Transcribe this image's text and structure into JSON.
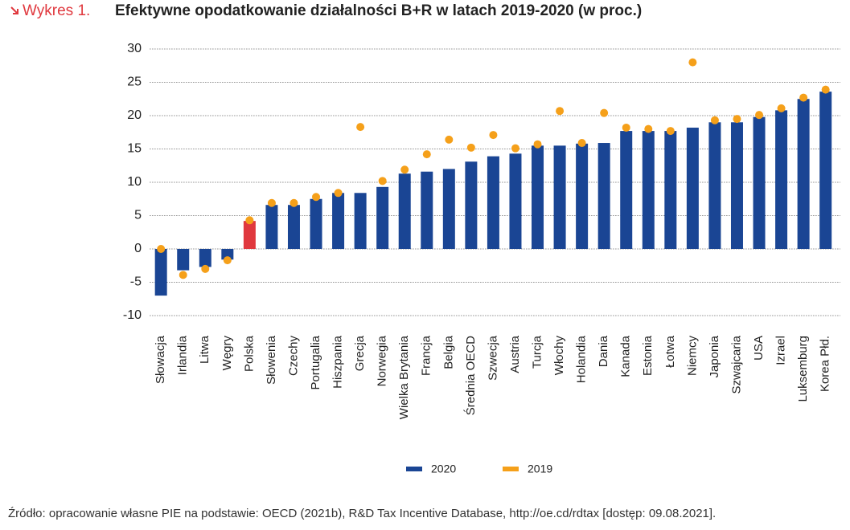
{
  "chart_data": {
    "type": "bar",
    "label": "Wykres 1.",
    "title": "Efektywne opodatkowanie działalności B+R w latach 2019-2020 (w proc.)",
    "source": "Źródło: opracowanie własne PIE na podstawie: OECD (2021b), R&D Tax Incentive Database, http://oe.cd/rdtax [dostęp: 09.08.2021].",
    "categories": [
      "Słowacja",
      "Irlandia",
      "Litwa",
      "Węgry",
      "Polska",
      "Słowenia",
      "Czechy",
      "Portugalia",
      "Hiszpania",
      "Grecja",
      "Norwegia",
      "Wielka Brytania",
      "Francja",
      "Belgia",
      "Średnia OECD",
      "Szwecja",
      "Austria",
      "Turcja",
      "Włochy",
      "Holandia",
      "Dania",
      "Kanada",
      "Estonia",
      "Łotwa",
      "Niemcy",
      "Japonia",
      "Szwajcaria",
      "USA",
      "Izrael",
      "Luksemburg",
      "Korea Płd."
    ],
    "series": [
      {
        "name": "2020",
        "type": "bar",
        "color": "#1a4594",
        "colors": [
          "#1a4594",
          "#1a4594",
          "#1a4594",
          "#1a4594",
          "#e0383e",
          "#1a4594",
          "#1a4594",
          "#1a4594",
          "#1a4594",
          "#1a4594",
          "#1a4594",
          "#1a4594",
          "#1a4594",
          "#1a4594",
          "#1a4594",
          "#1a4594",
          "#1a4594",
          "#1a4594",
          "#1a4594",
          "#1a4594",
          "#1a4594",
          "#1a4594",
          "#1a4594",
          "#1a4594",
          "#1a4594",
          "#1a4594",
          "#1a4594",
          "#1a4594",
          "#1a4594",
          "#1a4594",
          "#1a4594"
        ],
        "values": [
          -7.0,
          -3.2,
          -2.7,
          -1.6,
          4.2,
          6.6,
          6.6,
          7.5,
          8.4,
          8.4,
          9.3,
          11.3,
          11.6,
          12.0,
          13.1,
          13.9,
          14.3,
          15.5,
          15.5,
          15.8,
          15.9,
          17.7,
          17.7,
          17.7,
          18.2,
          19.0,
          19.0,
          19.8,
          20.8,
          22.5,
          23.6
        ]
      },
      {
        "name": "2019",
        "type": "scatter",
        "color": "#f5a01a",
        "values": [
          0,
          -3.9,
          -3.0,
          -1.7,
          4.3,
          6.9,
          6.9,
          7.8,
          8.4,
          18.3,
          10.2,
          11.9,
          14.2,
          16.4,
          15.2,
          17.1,
          15.1,
          15.7,
          20.7,
          15.9,
          20.4,
          18.2,
          18.0,
          17.7,
          28.0,
          19.3,
          19.5,
          20.1,
          21.1,
          22.7,
          23.9
        ]
      }
    ],
    "ylim": [
      -10,
      30
    ],
    "yticks": [
      -10,
      -5,
      0,
      5,
      10,
      15,
      20,
      25,
      30
    ],
    "grid": true
  }
}
